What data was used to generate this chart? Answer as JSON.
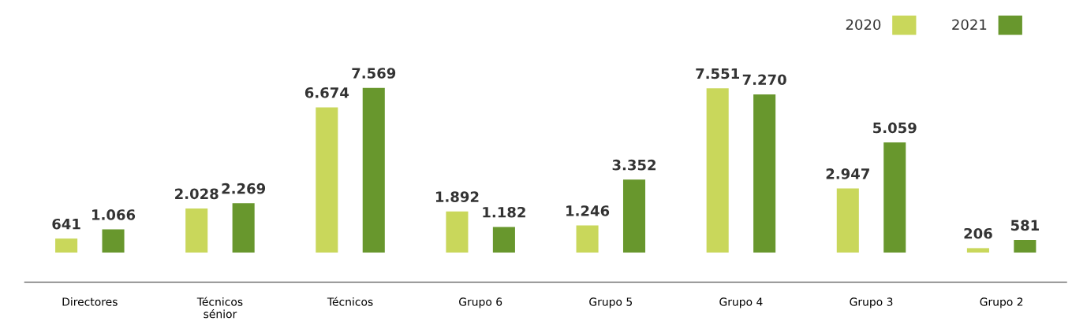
{
  "chart_data": {
    "type": "bar",
    "categories": [
      "Directores",
      "Técnicos\nsénior",
      "Técnicos",
      "Grupo 6",
      "Grupo 5",
      "Grupo 4",
      "Grupo 3",
      "Grupo 2"
    ],
    "series": [
      {
        "name": "2020",
        "color": "#c9d75b",
        "values": [
          641,
          2028,
          6674,
          1892,
          1246,
          7551,
          2947,
          206
        ],
        "value_labels": [
          "641",
          "2.028",
          "6.674",
          "1.892",
          "1.246",
          "7.551",
          "2.947",
          "206"
        ]
      },
      {
        "name": "2021",
        "color": "#68972d",
        "values": [
          1066,
          2269,
          7569,
          1182,
          3352,
          7270,
          5059,
          581
        ],
        "value_labels": [
          "1.066",
          "2.269",
          "7.569",
          "1.182",
          "3.352",
          "7.270",
          "5.059",
          "581"
        ]
      }
    ],
    "legend": "top right",
    "grid": false
  }
}
